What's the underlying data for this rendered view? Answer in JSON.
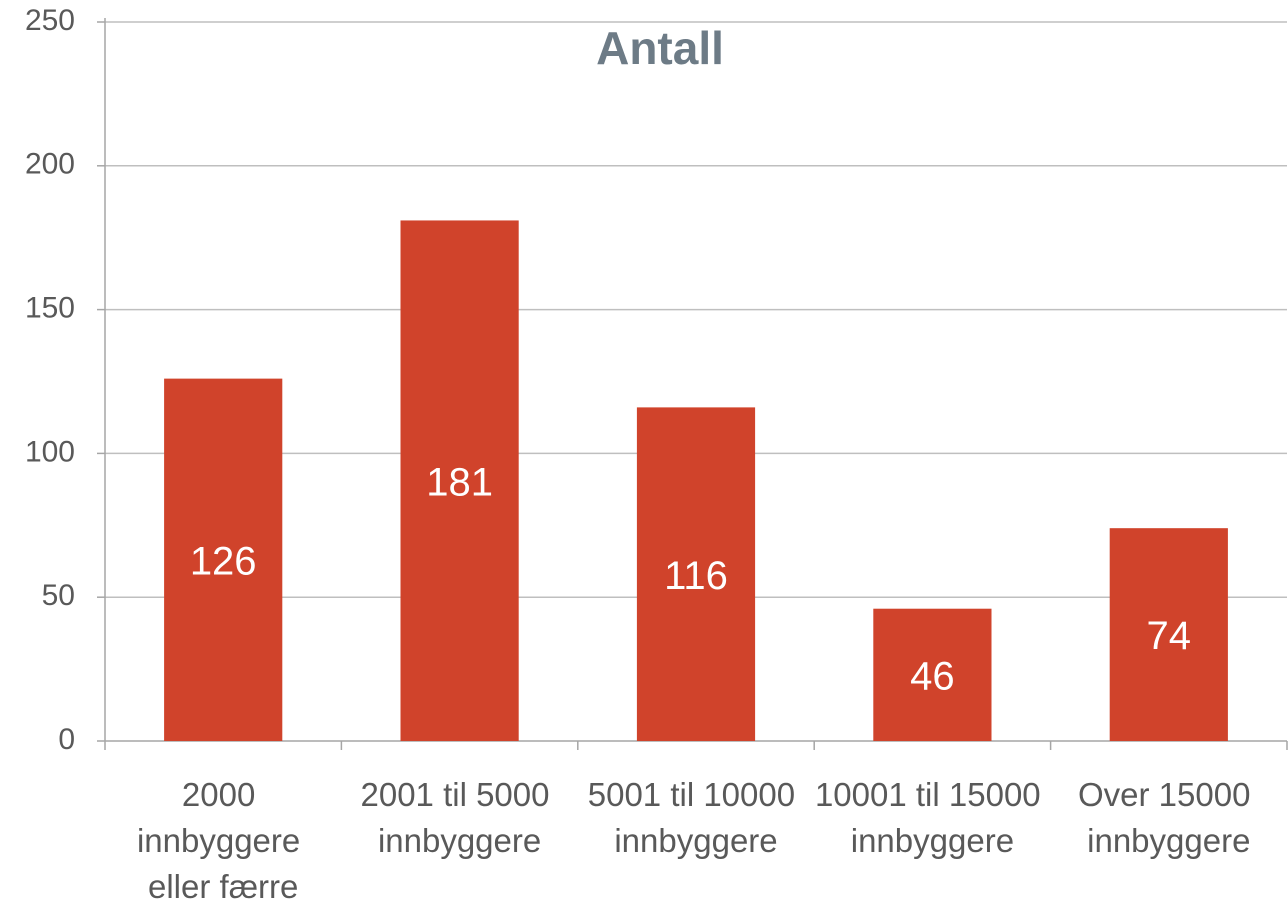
{
  "chart_data": {
    "type": "bar",
    "title": "Antall",
    "categories": [
      "2000 innbyggere eller færre",
      "2001 til 5000 innbyggere",
      "5001 til 10000 innbyggere",
      "10001 til 15000 innbyggere",
      "Over 15000 innbyggere"
    ],
    "values": [
      126,
      181,
      116,
      46,
      74
    ],
    "color": "#d0432b",
    "ylim": [
      0,
      250
    ],
    "yticks": [
      0,
      50,
      100,
      150,
      200,
      250
    ],
    "grid": true
  }
}
